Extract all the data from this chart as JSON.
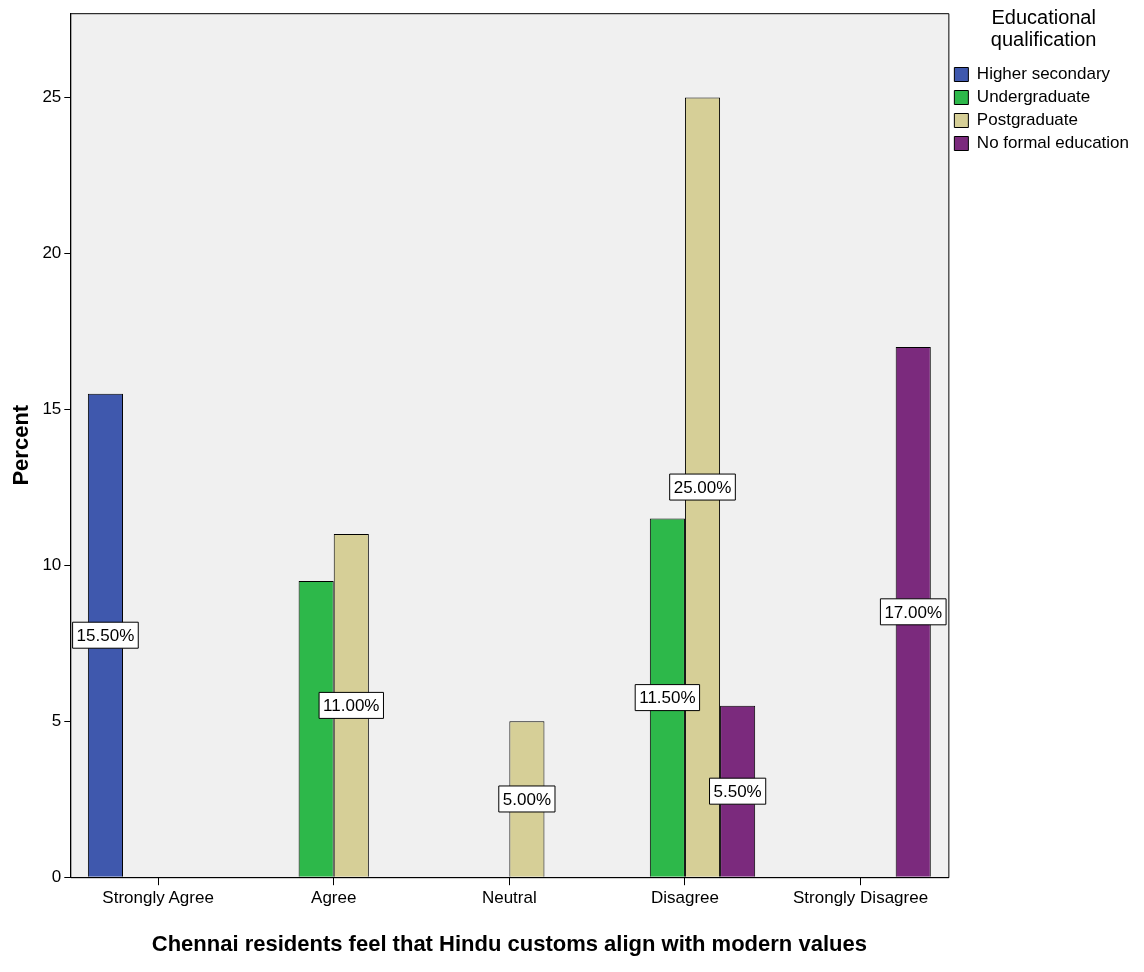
{
  "chart_data": {
    "type": "bar",
    "xlabel": "Chennai residents feel that Hindu customs align with modern values",
    "ylabel": "Percent",
    "legend_title": "Educational qualification",
    "legend": "top right",
    "grid": false,
    "categories": [
      "Strongly Agree",
      "Agree",
      "Neutral",
      "Disagree",
      "Strongly Disagree"
    ],
    "ylim": [
      0,
      27.7
    ],
    "yticks": [
      0,
      5,
      10,
      15,
      20,
      25
    ],
    "series": [
      {
        "name": "Higher secondary",
        "color": "#3f58ad",
        "values": [
          15.5,
          null,
          null,
          null,
          null
        ],
        "value_labels": [
          "15.50%",
          null,
          null,
          null,
          null
        ]
      },
      {
        "name": "Undergraduate",
        "color": "#2db84a",
        "values": [
          null,
          9.5,
          null,
          11.5,
          null
        ],
        "value_labels": [
          null,
          null,
          null,
          "11.50%",
          null
        ]
      },
      {
        "name": "Postgraduate",
        "color": "#d6cf97",
        "values": [
          null,
          11,
          5,
          25,
          null
        ],
        "value_labels": [
          null,
          "11.00%",
          "5.00%",
          "25.00%",
          null
        ]
      },
      {
        "name": "No formal education",
        "color": "#7b2a7d",
        "values": [
          null,
          null,
          null,
          5.5,
          17
        ],
        "value_labels": [
          null,
          null,
          null,
          "5.50%",
          "17.00%"
        ]
      }
    ]
  }
}
